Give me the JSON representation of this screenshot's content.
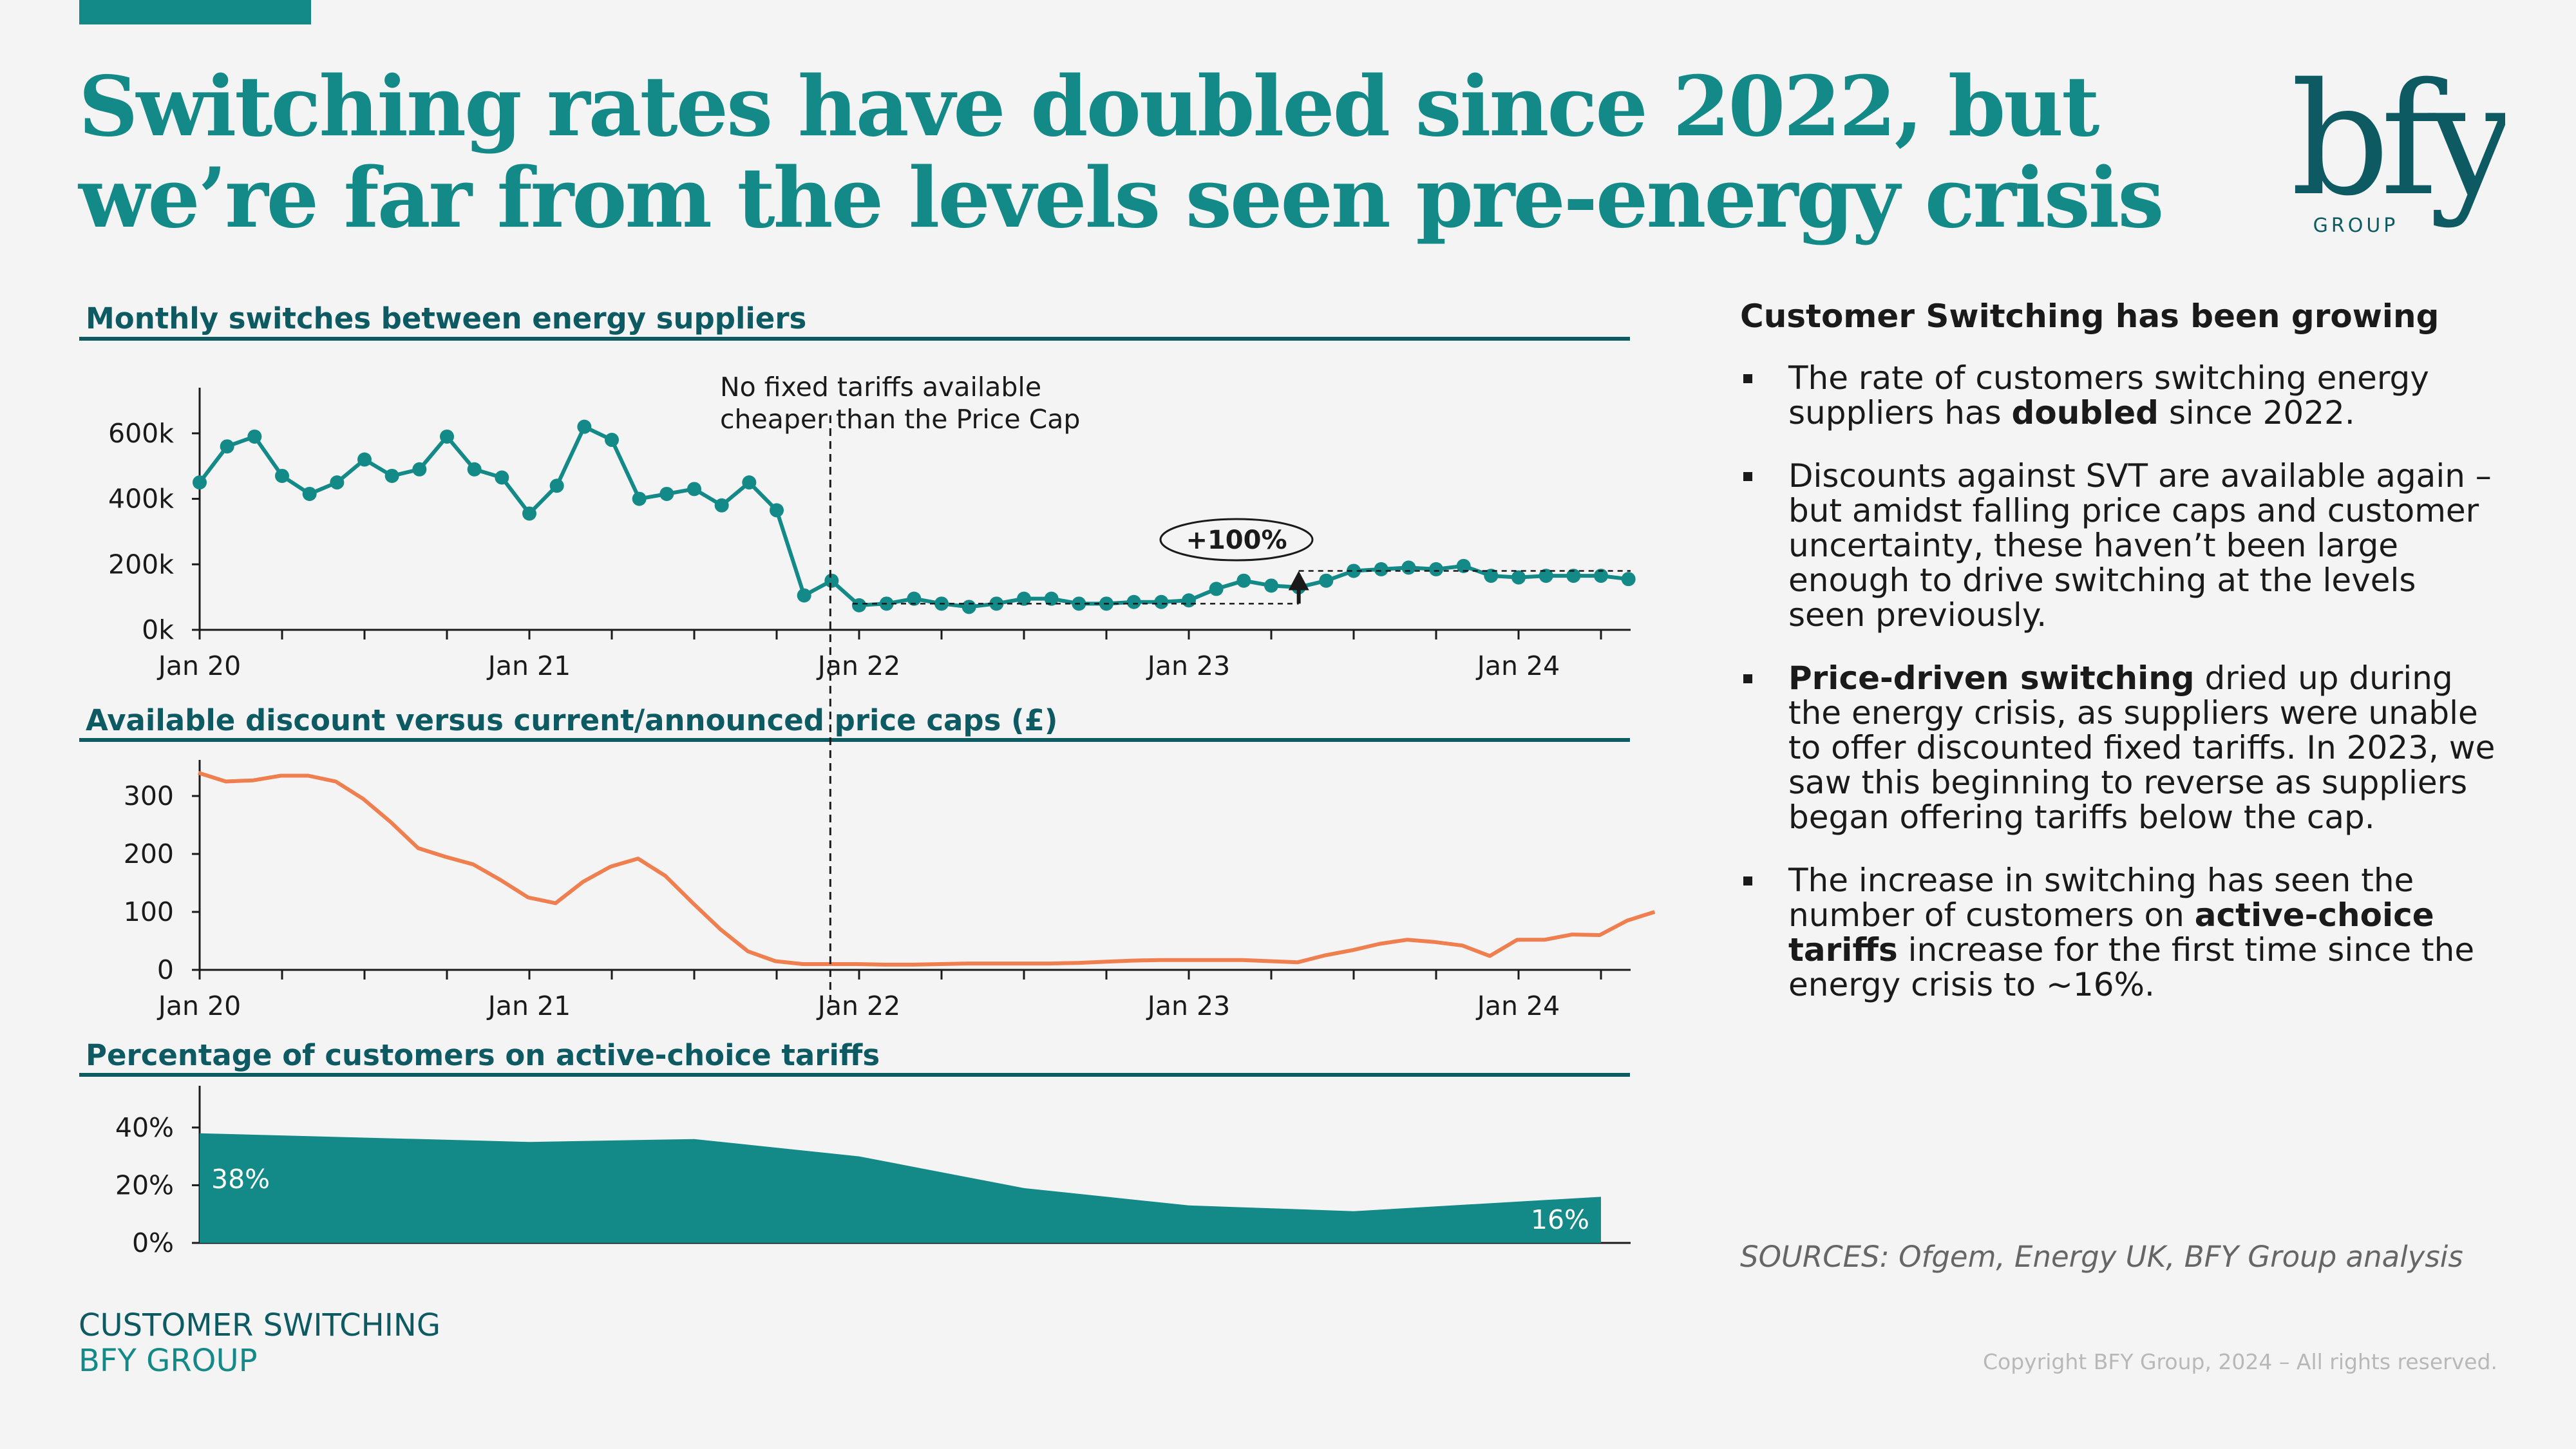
{
  "page": {
    "title": "Switching rates have doubled since 2022, but we’re far from the levels seen pre-energy crisis",
    "logo_text": "bfy",
    "logo_subtext": "GROUP"
  },
  "colors": {
    "teal": "#138a87",
    "dark_teal": "#0d5a63",
    "orange": "#ef7f4e"
  },
  "chart_data": [
    {
      "type": "line",
      "title": "Monthly switches between energy suppliers",
      "x_tick_labels": [
        "Jan 20",
        "Jan 21",
        "Jan 22",
        "Jan 23",
        "Jan 24"
      ],
      "y_tick_labels": [
        "0k",
        "200k",
        "400k",
        "600k"
      ],
      "ylim": [
        0,
        700000
      ],
      "x_start": "2020-01",
      "series": [
        {
          "values": [
            450000,
            560000,
            590000,
            470000,
            415000,
            450000,
            520000,
            470000,
            490000,
            590000,
            490000,
            465000,
            355000,
            440000,
            620000,
            580000,
            400000,
            415000,
            430000,
            380000,
            450000,
            365000,
            105000,
            150000,
            75000,
            80000,
            95000,
            80000,
            70000,
            80000,
            95000,
            95000,
            80000,
            80000,
            85000,
            85000,
            90000,
            125000,
            150000,
            135000,
            130000,
            150000,
            180000,
            185000,
            190000,
            185000,
            195000,
            165000,
            160000,
            165000,
            165000,
            165000,
            155000
          ]
        }
      ],
      "annotations": [
        {
          "text_line1": "No fixed tariffs available",
          "text_line2": "cheaper than the Price Cap",
          "x": "2021-12"
        },
        {
          "text": "+100%",
          "from": 80000,
          "to": 180000,
          "x": "2023-05"
        }
      ]
    },
    {
      "type": "line",
      "title": "Available discount versus current/announced price caps (£)",
      "x_tick_labels": [
        "Jan 20",
        "Jan 21",
        "Jan 22",
        "Jan 23",
        "Jan 24"
      ],
      "y_tick_labels": [
        "0",
        "100",
        "200",
        "300"
      ],
      "ylim": [
        0,
        340
      ],
      "x_start": "2020-01",
      "series": [
        {
          "values": [
            340,
            325,
            327,
            335,
            335,
            325,
            295,
            255,
            210,
            195,
            182,
            155,
            125,
            115,
            152,
            178,
            192,
            162,
            115,
            70,
            32,
            15,
            10,
            10,
            10,
            9,
            9,
            10,
            11,
            11,
            11,
            11,
            12,
            14,
            16,
            17,
            17,
            17,
            17,
            15,
            13,
            25,
            34,
            45,
            52,
            48,
            42,
            24,
            52,
            52,
            61,
            60,
            85,
            100
          ]
        }
      ]
    },
    {
      "type": "area",
      "title": "Percentage of customers on active-choice tariffs",
      "y_tick_labels": [
        "0%",
        "20%",
        "40%"
      ],
      "ylim": [
        0,
        50
      ],
      "x_start": "2020-01",
      "points": [
        {
          "x": "2020-01",
          "y": 38
        },
        {
          "x": "2021-01",
          "y": 35
        },
        {
          "x": "2021-07",
          "y": 36
        },
        {
          "x": "2022-01",
          "y": 30
        },
        {
          "x": "2022-07",
          "y": 19
        },
        {
          "x": "2023-01",
          "y": 13
        },
        {
          "x": "2023-07",
          "y": 11
        },
        {
          "x": "2024-04",
          "y": 16
        }
      ],
      "labels": {
        "start": "38%",
        "end": "16%"
      }
    }
  ],
  "sidebar": {
    "heading": "Customer Switching has been growing",
    "bullets": [
      {
        "parts": [
          {
            "t": "The rate of customers switching energy suppliers has "
          },
          {
            "t": "doubled",
            "b": true
          },
          {
            "t": " since 2022."
          }
        ]
      },
      {
        "parts": [
          {
            "t": "Discounts against SVT are available again – but amidst falling price caps and customer uncertainty, these haven’t been large enough to drive switching at the levels seen previously."
          }
        ]
      },
      {
        "parts": [
          {
            "t": "Price-driven switching",
            "b": true
          },
          {
            "t": " dried up during the energy crisis, as suppliers were unable to offer discounted fixed tariffs. In 2023, we saw this beginning to reverse as suppliers began offering tariffs below the cap."
          }
        ]
      },
      {
        "parts": [
          {
            "t": "The increase in switching has seen the number of customers on "
          },
          {
            "t": "active-choice tariffs",
            "b": true
          },
          {
            "t": " increase for the first time since the energy crisis to ~16%."
          }
        ]
      }
    ],
    "sources": "SOURCES: Ofgem, Energy UK, BFY Group analysis"
  },
  "footer": {
    "line1": "CUSTOMER SWITCHING",
    "line2": "BFY GROUP",
    "copyright": "Copyright BFY Group, 2024 – All rights reserved."
  }
}
